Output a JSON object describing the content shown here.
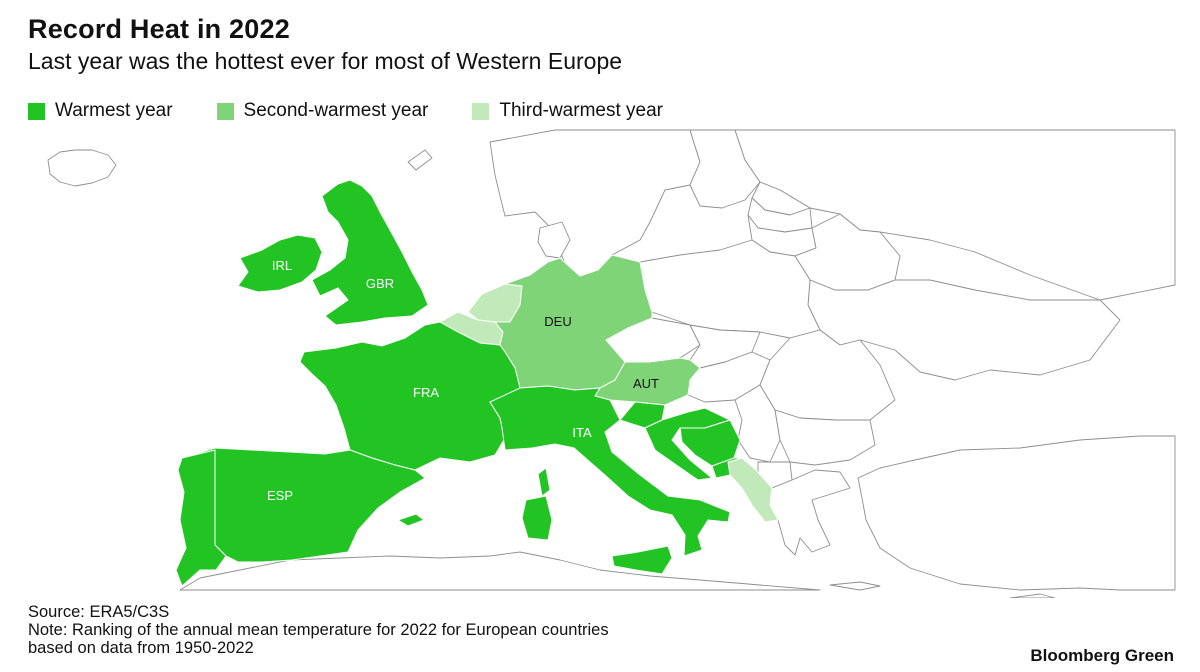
{
  "header": {
    "title": "Record Heat in 2022",
    "subtitle": "Last year was the hottest ever for most of Western Europe"
  },
  "legend": [
    {
      "label": "Warmest year",
      "color": "#22c424"
    },
    {
      "label": "Second-warmest year",
      "color": "#7fd477"
    },
    {
      "label": "Third-warmest year",
      "color": "#c2e9b9"
    }
  ],
  "map": {
    "countries": [
      {
        "code": "IRL",
        "rank": "Warmest year"
      },
      {
        "code": "GBR",
        "rank": "Warmest year"
      },
      {
        "code": "FRA",
        "rank": "Warmest year"
      },
      {
        "code": "ESP",
        "rank": "Warmest year"
      },
      {
        "code": "ITA",
        "rank": "Warmest year"
      },
      {
        "code": "DEU",
        "rank": "Second-warmest year"
      },
      {
        "code": "AUT",
        "rank": "Second-warmest year"
      }
    ]
  },
  "footer": {
    "source": "Source: ERA5/C3S",
    "note_line1": "Note: Ranking of the annual mean temperature for 2022 for European countries",
    "note_line2": "based on data from 1950-2022"
  },
  "brand": "Bloomberg Green"
}
